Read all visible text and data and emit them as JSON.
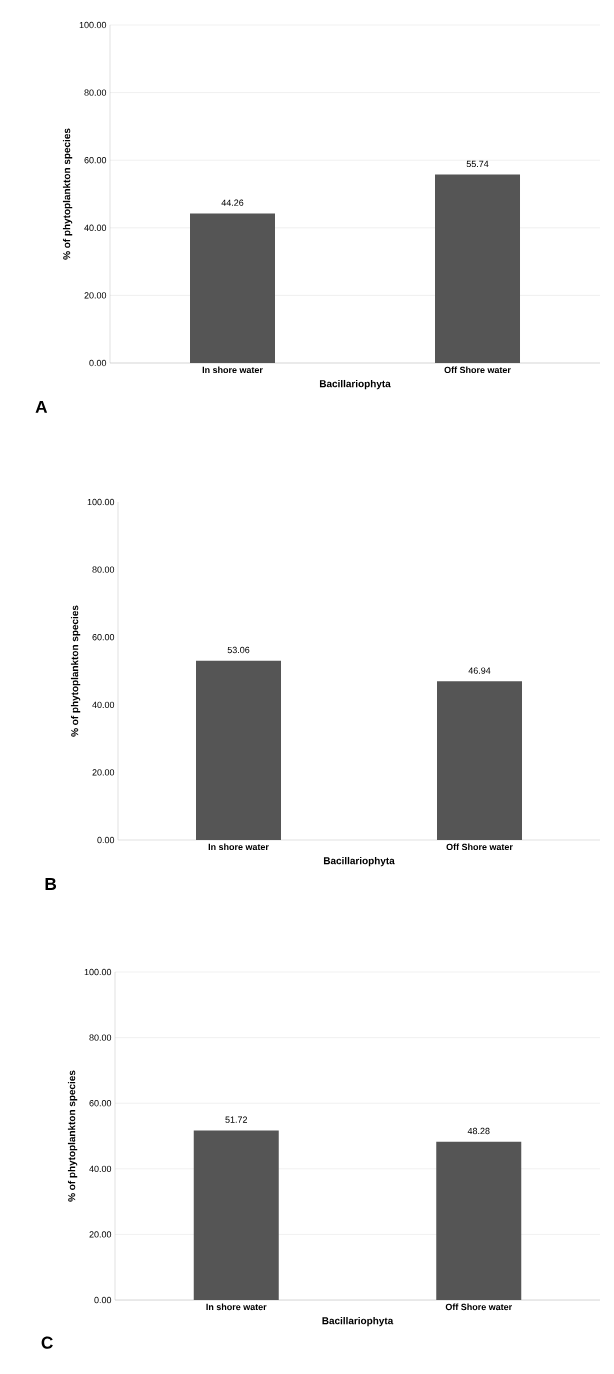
{
  "chart_data": [
    {
      "type": "bar",
      "categories": [
        "In shore water",
        "Off Shore water"
      ],
      "values": [
        44.26,
        55.74
      ],
      "color": "#555555",
      "xlabel": "Bacillariophyta",
      "ylabel": "% of phytoplankton species",
      "ylim": [
        0,
        100
      ],
      "yticks": [
        {
          "value": 0,
          "label": "0.00"
        },
        {
          "value": 20,
          "label": "20.00"
        },
        {
          "value": 40,
          "label": "40.00"
        },
        {
          "value": 60,
          "label": "60.00"
        },
        {
          "value": 80,
          "label": "80.00"
        },
        {
          "value": 100,
          "label": "100.00"
        }
      ],
      "data_labels": true,
      "grid": "y",
      "annotations": [
        "A"
      ]
    },
    {
      "type": "bar",
      "categories": [
        "In shore water",
        "Off Shore water"
      ],
      "values": [
        53.06,
        46.94
      ],
      "color": "#555555",
      "xlabel": "Bacillariophyta",
      "ylabel": "% of phytoplankton species",
      "ylim": [
        0,
        100
      ],
      "yticks": [
        {
          "value": 0,
          "label": "0.00"
        },
        {
          "value": 20,
          "label": "20.00"
        },
        {
          "value": 40,
          "label": "40.00"
        },
        {
          "value": 60,
          "label": "60.00"
        },
        {
          "value": 80,
          "label": "80.00"
        },
        {
          "value": 100,
          "label": "100.00"
        }
      ],
      "data_labels": true,
      "annotations": [
        "B"
      ]
    },
    {
      "type": "bar",
      "categories": [
        "In shore water",
        "Off Shore water"
      ],
      "values": [
        51.72,
        48.28
      ],
      "color": "#555555",
      "xlabel": "Bacillariophyta",
      "ylabel": "% of phytoplankton species",
      "ylim": [
        0,
        100
      ],
      "yticks": [
        {
          "value": 0,
          "label": "0.00"
        },
        {
          "value": 20,
          "label": "20.00"
        },
        {
          "value": 40,
          "label": "40.00"
        },
        {
          "value": 60,
          "label": "60.00"
        },
        {
          "value": 80,
          "label": "80.00"
        },
        {
          "value": 100,
          "label": "100.00"
        }
      ],
      "data_labels": true,
      "grid": "y",
      "annotations": [
        "C"
      ]
    }
  ]
}
